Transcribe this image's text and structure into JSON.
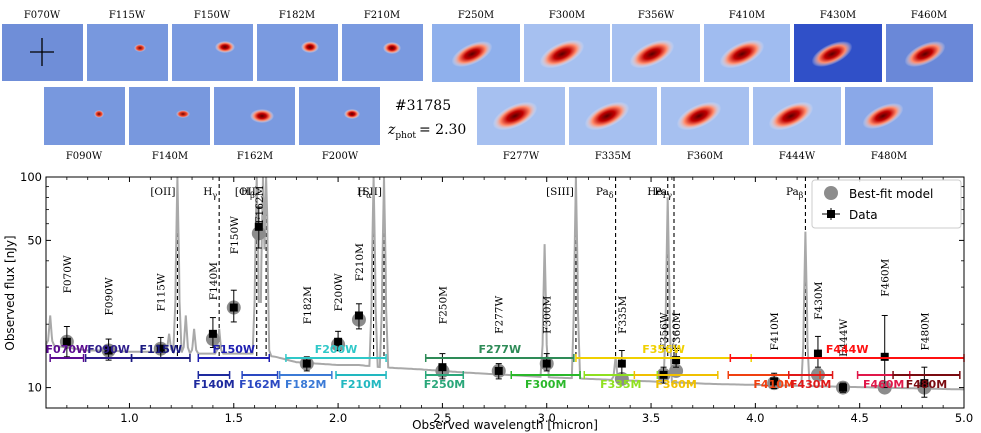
{
  "object": {
    "id": "#31785",
    "zphot_label": "z",
    "zphot_sub": "phot",
    "zphot_value": "= 2.30"
  },
  "stamps": {
    "top_left": [
      "F070W",
      "F115W",
      "F150W",
      "F182M",
      "F210M"
    ],
    "top_right": [
      "F250M",
      "F300M",
      "F356W",
      "F410M",
      "F430M",
      "F460M"
    ],
    "bottom_left": [
      "F090W",
      "F140M",
      "F162M",
      "F200W"
    ],
    "bottom_right": [
      "F277W",
      "F335M",
      "F360M",
      "F444W",
      "F480M"
    ]
  },
  "chart_data": {
    "type": "line",
    "xlabel": "Observed wavelength [micron]",
    "ylabel": "Observed flux [nJy]",
    "xlim": [
      0.6,
      5.0
    ],
    "ylim": [
      8,
      100
    ],
    "yscale": "log",
    "xticks": [
      1.0,
      1.5,
      2.0,
      2.5,
      3.0,
      3.5,
      4.0,
      4.5,
      5.0
    ],
    "xtick_labels": [
      "1.0",
      "1.5",
      "2.0",
      "2.5",
      "3.0",
      "3.5",
      "4.0",
      "4.5",
      "5.0"
    ],
    "yticks": [
      10,
      50,
      100
    ],
    "ytick_labels": [
      "10",
      "50",
      "100"
    ],
    "legend": {
      "position": "top-right",
      "model_label": "Best-fit model",
      "data_label": "Data"
    },
    "colors": {
      "model_line": "#a9a9a9",
      "model_marker": "#8c8c8c",
      "data": "#000000"
    },
    "emission_lines": [
      {
        "label": "[OII]",
        "x": 1.23,
        "name": "OII"
      },
      {
        "label": "H",
        "sub": "γ",
        "x": 1.43,
        "name": "Hgamma"
      },
      {
        "label": "H",
        "sub": "β",
        "x": 1.61,
        "name": "Hbeta"
      },
      {
        "label": "[OIII]",
        "x": 1.655,
        "name": "OIII"
      },
      {
        "label": "H",
        "sub": "α",
        "x": 2.17,
        "name": "Halpha"
      },
      {
        "label": "[SII]",
        "x": 2.22,
        "name": "SII"
      },
      {
        "label": "[SIII]",
        "x": 3.14,
        "name": "SIII"
      },
      {
        "label": "Pa",
        "sub": "δ",
        "x": 3.33,
        "name": "Padelta"
      },
      {
        "label": "He",
        "sub": "I",
        "x": 3.58,
        "name": "HeI"
      },
      {
        "label": "Pa",
        "sub": "γ",
        "x": 3.61,
        "name": "Pagamma"
      },
      {
        "label": "Pa",
        "sub": "β",
        "x": 4.24,
        "name": "Pabeta"
      }
    ],
    "model_continuum": {
      "x": [
        0.6,
        0.7,
        0.8,
        0.9,
        1.0,
        1.1,
        1.2,
        1.3,
        1.4,
        1.5,
        1.6,
        1.7,
        1.8,
        1.9,
        2.0,
        2.1,
        2.2,
        2.4,
        2.6,
        2.8,
        3.0,
        3.2,
        3.4,
        3.6,
        3.8,
        4.0,
        4.2,
        4.4,
        4.6,
        4.8,
        5.0
      ],
      "y": [
        16.0,
        15.5,
        15.0,
        15.0,
        14.8,
        14.8,
        14.8,
        14.5,
        14.5,
        14.5,
        14.5,
        14.0,
        13.2,
        13.0,
        12.8,
        12.8,
        12.5,
        12.2,
        11.8,
        11.5,
        11.2,
        11.0,
        10.8,
        10.6,
        10.4,
        10.3,
        10.2,
        10.1,
        10.0,
        9.9,
        9.8
      ]
    },
    "model_peaks": [
      {
        "x": 0.62,
        "y": 22
      },
      {
        "x": 1.19,
        "y": 18
      },
      {
        "x": 1.23,
        "y": 100
      },
      {
        "x": 1.27,
        "y": 22
      },
      {
        "x": 1.31,
        "y": 19
      },
      {
        "x": 1.43,
        "y": 19
      },
      {
        "x": 1.61,
        "y": 100
      },
      {
        "x": 1.64,
        "y": 100
      },
      {
        "x": 1.655,
        "y": 100
      },
      {
        "x": 2.17,
        "y": 100
      },
      {
        "x": 2.22,
        "y": 100
      },
      {
        "x": 2.99,
        "y": 48
      },
      {
        "x": 3.14,
        "y": 100
      },
      {
        "x": 3.33,
        "y": 14
      },
      {
        "x": 3.58,
        "y": 80
      },
      {
        "x": 4.24,
        "y": 55
      }
    ],
    "filters": [
      {
        "name": "F070W",
        "x": 0.7,
        "model": 16.5,
        "data": 16.5,
        "err_lo": 2.5,
        "err_hi": 3.0,
        "label_y": 28
      },
      {
        "name": "F090W",
        "x": 0.9,
        "model": 15.0,
        "data": 15.0,
        "err_lo": 1.5,
        "err_hi": 2.0,
        "label_y": 22
      },
      {
        "name": "F115W",
        "x": 1.15,
        "model": 15.3,
        "data": 15.3,
        "err_lo": 1.5,
        "err_hi": 2.0,
        "label_y": 23
      },
      {
        "name": "F140M",
        "x": 1.4,
        "model": 17.0,
        "data": 18.0,
        "err_lo": 2.5,
        "err_hi": 3.5,
        "label_y": 26
      },
      {
        "name": "F150W",
        "x": 1.5,
        "model": 24.0,
        "data": 24.0,
        "err_lo": 3.5,
        "err_hi": 5.0,
        "label_y": 43
      },
      {
        "name": "F162M",
        "x": 1.62,
        "model": 54.0,
        "data": 58.0,
        "err_lo": 12.0,
        "err_hi": 14.0,
        "label_y": 60
      },
      {
        "name": "F182M",
        "x": 1.85,
        "model": 13.0,
        "data": 13.0,
        "err_lo": 1.0,
        "err_hi": 1.0,
        "label_y": 20
      },
      {
        "name": "F200W",
        "x": 2.0,
        "model": 16.0,
        "data": 16.5,
        "err_lo": 1.5,
        "err_hi": 2.0,
        "label_y": 23
      },
      {
        "name": "F210M",
        "x": 2.1,
        "model": 21.0,
        "data": 22.0,
        "err_lo": 3.0,
        "err_hi": 3.0,
        "label_y": 32
      },
      {
        "name": "F250M",
        "x": 2.5,
        "model": 12.0,
        "data": 12.5,
        "err_lo": 1.5,
        "err_hi": 2.0,
        "label_y": 20
      },
      {
        "name": "F277W",
        "x": 2.77,
        "model": 12.0,
        "data": 12.0,
        "err_lo": 1.0,
        "err_hi": 1.0,
        "label_y": 18
      },
      {
        "name": "F300M",
        "x": 3.0,
        "model": 13.0,
        "data": 13.0,
        "err_lo": 1.0,
        "err_hi": 1.5,
        "label_y": 18
      },
      {
        "name": "F335M",
        "x": 3.36,
        "model": 11.0,
        "data": 13.0,
        "err_lo": 1.5,
        "err_hi": 2.0,
        "label_y": 18
      },
      {
        "name": "F356W",
        "x": 3.56,
        "model": 11.5,
        "data": 11.5,
        "err_lo": 1.0,
        "err_hi": 1.0,
        "label_y": 15
      },
      {
        "name": "F360M",
        "x": 3.62,
        "model": 12.0,
        "data": 13.5,
        "err_lo": 1.0,
        "err_hi": 1.5,
        "label_y": 15
      },
      {
        "name": "F410M",
        "x": 4.09,
        "model": 10.5,
        "data": 10.7,
        "err_lo": 0.8,
        "err_hi": 1.0,
        "label_y": 15
      },
      {
        "name": "F430M",
        "x": 4.3,
        "model": 11.5,
        "data": 14.5,
        "err_lo": 2.0,
        "err_hi": 3.0,
        "label_y": 21
      },
      {
        "name": "F444W",
        "x": 4.42,
        "model": 10.0,
        "data": 10.0,
        "err_lo": 0.5,
        "err_hi": 0.5,
        "label_y": 14
      },
      {
        "name": "F460M",
        "x": 4.62,
        "model": 10.0,
        "data": 14.0,
        "err_lo": 4.0,
        "err_hi": 8.0,
        "label_y": 27
      },
      {
        "name": "F480M",
        "x": 4.81,
        "model": 10.0,
        "data": 10.5,
        "err_lo": 1.5,
        "err_hi": 2.0,
        "label_y": 15
      }
    ],
    "bandpasses": [
      {
        "name": "F070W",
        "x0": 0.62,
        "x1": 0.78,
        "row": 0,
        "color": "#5b0a91"
      },
      {
        "name": "F090W",
        "x0": 0.79,
        "x1": 1.01,
        "row": 0,
        "color": "#2e1d8c"
      },
      {
        "name": "F115W",
        "x0": 1.01,
        "x1": 1.29,
        "row": 0,
        "color": "#1a1a80"
      },
      {
        "name": "F150W",
        "x0": 1.33,
        "x1": 1.67,
        "row": 0,
        "color": "#1f1fb2"
      },
      {
        "name": "F140M",
        "x0": 1.33,
        "x1": 1.48,
        "row": 1,
        "color": "#1e2a9e"
      },
      {
        "name": "F162M",
        "x0": 1.54,
        "x1": 1.71,
        "row": 1,
        "color": "#2a48c2"
      },
      {
        "name": "F182M",
        "x0": 1.72,
        "x1": 1.97,
        "row": 1,
        "color": "#3b7ad6"
      },
      {
        "name": "F200W",
        "x0": 1.75,
        "x1": 2.23,
        "row": 0,
        "color": "#2fc8c8"
      },
      {
        "name": "F210M",
        "x0": 1.99,
        "x1": 2.23,
        "row": 1,
        "color": "#22b8c0"
      },
      {
        "name": "F250M",
        "x0": 2.42,
        "x1": 2.6,
        "row": 1,
        "color": "#2aa77a"
      },
      {
        "name": "F277W",
        "x0": 2.42,
        "x1": 3.13,
        "row": 0,
        "color": "#2e8b57"
      },
      {
        "name": "F300M",
        "x0": 2.83,
        "x1": 3.16,
        "row": 1,
        "color": "#2ab82a"
      },
      {
        "name": "F335M",
        "x0": 3.18,
        "x1": 3.53,
        "row": 1,
        "color": "#8fe01f"
      },
      {
        "name": "F356W",
        "x0": 3.14,
        "x1": 3.98,
        "row": 0,
        "color": "#f0d000"
      },
      {
        "name": "F360M",
        "x0": 3.42,
        "x1": 3.82,
        "row": 1,
        "color": "#f0c000"
      },
      {
        "name": "F410M",
        "x0": 3.87,
        "x1": 4.31,
        "row": 1,
        "color": "#f04010"
      },
      {
        "name": "F444W",
        "x0": 3.88,
        "x1": 5.0,
        "row": 0,
        "color": "#ff1010"
      },
      {
        "name": "F430M",
        "x0": 4.16,
        "x1": 4.37,
        "row": 1,
        "color": "#e01818"
      },
      {
        "name": "F460M",
        "x0": 4.49,
        "x1": 4.74,
        "row": 1,
        "color": "#e0184a"
      },
      {
        "name": "F480M",
        "x0": 4.66,
        "x1": 4.98,
        "row": 1,
        "color": "#7a0a10"
      }
    ]
  }
}
